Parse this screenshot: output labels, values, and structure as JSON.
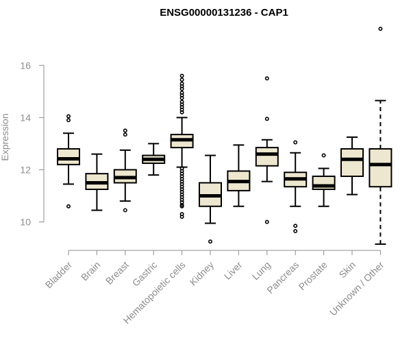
{
  "chart_data": {
    "type": "boxplot",
    "title": "ENSG00000131236 - CAP1",
    "xlabel": "",
    "ylabel": "Expression",
    "ylim": [
      9.2,
      17.4
    ],
    "yticks": [
      10,
      12,
      14,
      16
    ],
    "box_fill": "#ede7cf",
    "categories": [
      "Bladder",
      "Brain",
      "Breast",
      "Gastric",
      "Hematopoietic cells",
      "Kidney",
      "Liver",
      "Lung",
      "Pancreas",
      "Prostate",
      "Skin",
      "Unknown / Other"
    ],
    "series": [
      {
        "category": "Bladder",
        "whisker_low": 11.45,
        "q1": 12.2,
        "median": 12.42,
        "q3": 12.8,
        "whisker_high": 13.4,
        "outliers": [
          10.6,
          13.9,
          14.05
        ],
        "dashed_whiskers": false
      },
      {
        "category": "Brain",
        "whisker_low": 10.45,
        "q1": 11.25,
        "median": 11.5,
        "q3": 11.85,
        "whisker_high": 12.6,
        "outliers": [],
        "dashed_whiskers": false
      },
      {
        "category": "Breast",
        "whisker_low": 10.8,
        "q1": 11.5,
        "median": 11.7,
        "q3": 12.0,
        "whisker_high": 12.75,
        "outliers": [
          10.45,
          13.35,
          13.5
        ],
        "dashed_whiskers": false
      },
      {
        "category": "Gastric",
        "whisker_low": 11.8,
        "q1": 12.25,
        "median": 12.4,
        "q3": 12.55,
        "whisker_high": 13.0,
        "outliers": [],
        "dashed_whiskers": false
      },
      {
        "category": "Hematopoietic cells",
        "whisker_low": 12.1,
        "q1": 12.85,
        "median": 13.15,
        "q3": 13.35,
        "whisker_high": 14.0,
        "outliers": [
          10.2,
          10.3,
          10.6,
          10.65,
          10.75,
          10.85,
          10.95,
          11.05,
          11.15,
          11.25,
          11.35,
          11.45,
          11.55,
          11.65,
          11.75,
          11.85,
          11.95,
          12.05,
          14.2,
          14.3,
          14.4,
          14.5,
          14.6,
          14.75,
          14.85,
          14.95,
          15.1,
          15.2,
          15.3,
          15.45,
          15.6
        ],
        "dashed_whiskers": false
      },
      {
        "category": "Kidney",
        "whisker_low": 9.95,
        "q1": 10.6,
        "median": 11.0,
        "q3": 11.5,
        "whisker_high": 12.55,
        "outliers": [
          9.25
        ],
        "dashed_whiskers": false
      },
      {
        "category": "Liver",
        "whisker_low": 10.6,
        "q1": 11.2,
        "median": 11.55,
        "q3": 11.95,
        "whisker_high": 12.95,
        "outliers": [],
        "dashed_whiskers": false
      },
      {
        "category": "Lung",
        "whisker_low": 11.55,
        "q1": 12.15,
        "median": 12.6,
        "q3": 12.85,
        "whisker_high": 13.15,
        "outliers": [
          10.0,
          13.95,
          15.5
        ],
        "dashed_whiskers": false
      },
      {
        "category": "Pancreas",
        "whisker_low": 10.6,
        "q1": 11.35,
        "median": 11.65,
        "q3": 11.9,
        "whisker_high": 12.65,
        "outliers": [
          9.65,
          9.85,
          13.05
        ],
        "dashed_whiskers": false
      },
      {
        "category": "Prostate",
        "whisker_low": 10.6,
        "q1": 11.25,
        "median": 11.38,
        "q3": 11.75,
        "whisker_high": 12.05,
        "outliers": [
          12.55
        ],
        "dashed_whiskers": false
      },
      {
        "category": "Skin",
        "whisker_low": 11.05,
        "q1": 11.75,
        "median": 12.4,
        "q3": 12.8,
        "whisker_high": 13.25,
        "outliers": [],
        "dashed_whiskers": false
      },
      {
        "category": "Unknown / Other",
        "whisker_low": 9.15,
        "q1": 11.35,
        "median": 12.2,
        "q3": 12.8,
        "whisker_high": 14.65,
        "outliers": [
          17.4
        ],
        "dashed_whiskers": true
      }
    ]
  }
}
